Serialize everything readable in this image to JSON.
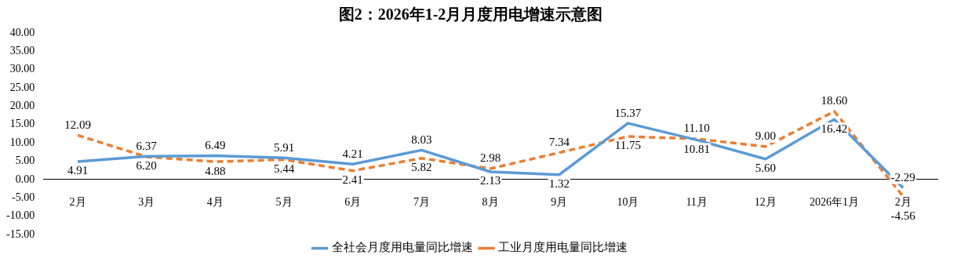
{
  "chart_data": {
    "type": "line",
    "title": "图2：2026年1-2月月度用电增速示意图",
    "categories": [
      "2月",
      "3月",
      "4月",
      "5月",
      "6月",
      "7月",
      "8月",
      "9月",
      "10月",
      "11月",
      "12月",
      "2026年1月",
      "2月"
    ],
    "series": [
      {
        "name": "全社会月度用电量同比增速",
        "color": "#5b9bd5",
        "line_style": "solid",
        "values": [
          4.91,
          6.37,
          6.49,
          5.91,
          4.21,
          8.03,
          2.13,
          1.32,
          15.37,
          10.81,
          5.6,
          16.42,
          -2.29
        ],
        "value_labels": [
          "4.91",
          "6.37",
          "6.49",
          "5.91",
          "4.21",
          "8.03",
          "2.13",
          "1.32",
          "15.37",
          "10.81",
          "5.60",
          "16.42",
          "-2.29"
        ]
      },
      {
        "name": "工业月度用电量同比增速",
        "color": "#ed7d31",
        "line_style": "dashed",
        "values": [
          12.09,
          6.2,
          4.88,
          5.44,
          2.41,
          5.82,
          2.98,
          7.34,
          11.75,
          11.1,
          9,
          18.6,
          -4.56
        ],
        "value_labels": [
          "12.09",
          "6.20",
          "4.88",
          "5.44",
          "2.41",
          "5.82",
          "2.98",
          "7.34",
          "11.75",
          "11.10",
          "9.00",
          "18.60",
          "-4.56"
        ]
      }
    ],
    "ylim": [
      -15,
      40
    ],
    "yticks": [
      {
        "value": -15,
        "label": "-15.00"
      },
      {
        "value": -10,
        "label": "-10.00"
      },
      {
        "value": -5,
        "label": "-5.00"
      },
      {
        "value": 0,
        "label": "0.00"
      },
      {
        "value": 5,
        "label": "5.00"
      },
      {
        "value": 10,
        "label": "10.00"
      },
      {
        "value": 15,
        "label": "15.00"
      },
      {
        "value": 20,
        "label": "20.00"
      },
      {
        "value": 25,
        "label": "25.00"
      },
      {
        "value": 30,
        "label": "30.00"
      },
      {
        "value": 35,
        "label": "35.00"
      },
      {
        "value": 40,
        "label": "40.00"
      }
    ],
    "grid": false,
    "legend": "bottom",
    "marker": "none"
  }
}
